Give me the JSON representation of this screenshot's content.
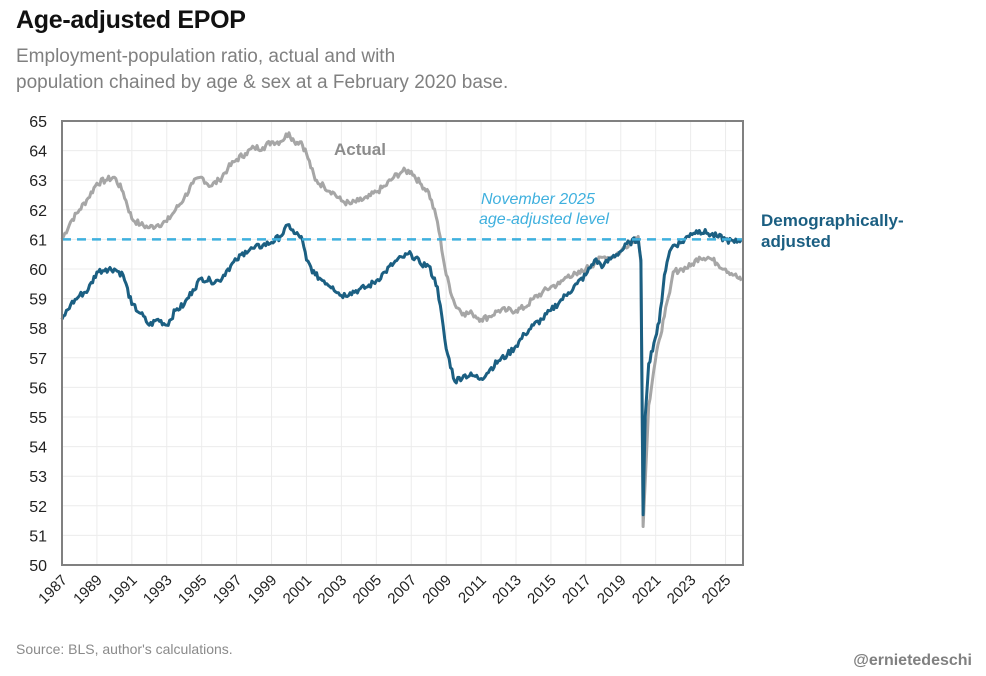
{
  "header": {
    "title": "Age-adjusted EPOP",
    "subtitle_line1": "Employment-population ratio, actual and with",
    "subtitle_line2": "population chained by age & sex at a February 2020 base."
  },
  "footer": {
    "source": "Source: BLS, author's calculations.",
    "credit": "@ernietedeschi"
  },
  "colors": {
    "actual": "#a6a6a6",
    "adjusted": "#1b5f82",
    "reference": "#3fb0de",
    "grid": "#ececec",
    "frame": "#808080"
  },
  "chart_data": {
    "type": "line",
    "title": "Age-adjusted EPOP",
    "subtitle": "Employment-population ratio, actual and with population chained by age & sex at a February 2020 base.",
    "xlabel": "",
    "ylabel": "",
    "xlim": [
      1987,
      2026
    ],
    "ylim": [
      50,
      65
    ],
    "grid": true,
    "yticks": [
      50,
      51,
      52,
      53,
      54,
      55,
      56,
      57,
      58,
      59,
      60,
      61,
      62,
      63,
      64,
      65
    ],
    "xticks": [
      "1987",
      "1989",
      "1991",
      "1993",
      "1995",
      "1997",
      "1999",
      "2001",
      "2003",
      "2005",
      "2007",
      "2009",
      "2011",
      "2013",
      "2015",
      "2017",
      "2019",
      "2021",
      "2023",
      "2025"
    ],
    "reference_line": {
      "value": 61.0,
      "label_line1": "November 2025",
      "label_line2": "age-adjusted level"
    },
    "annotations": [
      {
        "text": "Actual",
        "series": "Actual"
      },
      {
        "text_line1": "Demographically-",
        "text_line2": "adjusted",
        "series": "Demographically-adjusted"
      }
    ],
    "series": [
      {
        "name": "Actual",
        "x": [
          1987.0,
          1987.5,
          1988.0,
          1988.5,
          1989.0,
          1989.5,
          1990.0,
          1990.5,
          1991.0,
          1991.5,
          1992.0,
          1992.5,
          1993.0,
          1993.5,
          1994.0,
          1994.5,
          1995.0,
          1995.5,
          1996.0,
          1996.5,
          1997.0,
          1997.5,
          1998.0,
          1998.5,
          1999.0,
          1999.5,
          2000.0,
          2000.3,
          2000.7,
          2001.0,
          2001.5,
          2002.0,
          2002.5,
          2003.0,
          2003.5,
          2004.0,
          2004.5,
          2005.0,
          2005.5,
          2006.0,
          2006.5,
          2007.0,
          2007.5,
          2008.0,
          2008.5,
          2009.0,
          2009.5,
          2010.0,
          2010.5,
          2011.0,
          2011.5,
          2012.0,
          2012.5,
          2013.0,
          2013.5,
          2014.0,
          2014.5,
          2015.0,
          2015.5,
          2016.0,
          2016.5,
          2017.0,
          2017.5,
          2018.0,
          2018.5,
          2019.0,
          2019.5,
          2020.0,
          2020.15,
          2020.28,
          2020.4,
          2020.6,
          2020.9,
          2021.2,
          2021.5,
          2021.8,
          2022.0,
          2022.5,
          2023.0,
          2023.5,
          2024.0,
          2024.5,
          2025.0,
          2025.5,
          2025.9
        ],
        "values": [
          61.0,
          61.6,
          62.0,
          62.4,
          62.9,
          63.0,
          63.1,
          62.6,
          61.7,
          61.5,
          61.4,
          61.5,
          61.6,
          62.0,
          62.4,
          62.9,
          63.1,
          62.8,
          63.0,
          63.4,
          63.7,
          63.9,
          64.1,
          64.1,
          64.3,
          64.3,
          64.6,
          64.3,
          64.3,
          63.9,
          63.0,
          62.8,
          62.6,
          62.3,
          62.2,
          62.3,
          62.4,
          62.6,
          62.8,
          63.1,
          63.3,
          63.3,
          62.9,
          62.6,
          61.6,
          59.8,
          58.8,
          58.5,
          58.5,
          58.3,
          58.4,
          58.6,
          58.6,
          58.6,
          58.7,
          59.0,
          59.2,
          59.4,
          59.5,
          59.8,
          59.8,
          60.0,
          60.2,
          60.4,
          60.4,
          60.6,
          60.9,
          61.1,
          60.2,
          51.3,
          52.8,
          55.4,
          56.6,
          57.6,
          58.4,
          59.2,
          59.9,
          60.0,
          60.1,
          60.4,
          60.4,
          60.2,
          60.0,
          59.8,
          59.6
        ]
      },
      {
        "name": "Demographically-adjusted",
        "x": [
          1987.0,
          1987.5,
          1988.0,
          1988.5,
          1989.0,
          1989.5,
          1990.0,
          1990.5,
          1991.0,
          1991.5,
          1992.0,
          1992.5,
          1993.0,
          1993.5,
          1994.0,
          1994.5,
          1995.0,
          1995.5,
          1996.0,
          1996.5,
          1997.0,
          1997.5,
          1998.0,
          1998.5,
          1999.0,
          1999.5,
          2000.0,
          2000.3,
          2000.7,
          2001.0,
          2001.5,
          2002.0,
          2002.5,
          2003.0,
          2003.5,
          2004.0,
          2004.5,
          2005.0,
          2005.5,
          2006.0,
          2006.5,
          2007.0,
          2007.5,
          2008.0,
          2008.5,
          2009.0,
          2009.5,
          2010.0,
          2010.5,
          2011.0,
          2011.5,
          2012.0,
          2012.5,
          2013.0,
          2013.5,
          2014.0,
          2014.5,
          2015.0,
          2015.5,
          2016.0,
          2016.5,
          2017.0,
          2017.5,
          2018.0,
          2018.5,
          2019.0,
          2019.5,
          2020.0,
          2020.15,
          2020.28,
          2020.4,
          2020.6,
          2020.9,
          2021.2,
          2021.5,
          2021.8,
          2022.0,
          2022.5,
          2023.0,
          2023.5,
          2024.0,
          2024.5,
          2025.0,
          2025.5,
          2025.9
        ],
        "values": [
          58.3,
          58.8,
          59.1,
          59.3,
          59.9,
          60.0,
          60.0,
          59.8,
          58.8,
          58.5,
          58.1,
          58.3,
          58.1,
          58.6,
          58.8,
          59.3,
          59.7,
          59.6,
          59.6,
          60.0,
          60.3,
          60.6,
          60.7,
          60.8,
          60.9,
          61.1,
          61.5,
          61.2,
          61.1,
          60.3,
          59.8,
          59.6,
          59.4,
          59.1,
          59.2,
          59.3,
          59.4,
          59.6,
          59.9,
          60.2,
          60.4,
          60.5,
          60.2,
          60.1,
          59.4,
          57.3,
          56.2,
          56.4,
          56.4,
          56.3,
          56.6,
          56.9,
          57.1,
          57.4,
          57.8,
          58.1,
          58.3,
          58.6,
          58.9,
          59.2,
          59.5,
          59.8,
          60.3,
          60.1,
          60.4,
          60.6,
          60.9,
          61.0,
          60.3,
          51.7,
          55.0,
          56.8,
          57.5,
          58.2,
          59.8,
          60.6,
          60.8,
          60.9,
          61.2,
          61.3,
          61.2,
          61.1,
          61.0,
          60.9,
          61.0
        ]
      }
    ]
  }
}
